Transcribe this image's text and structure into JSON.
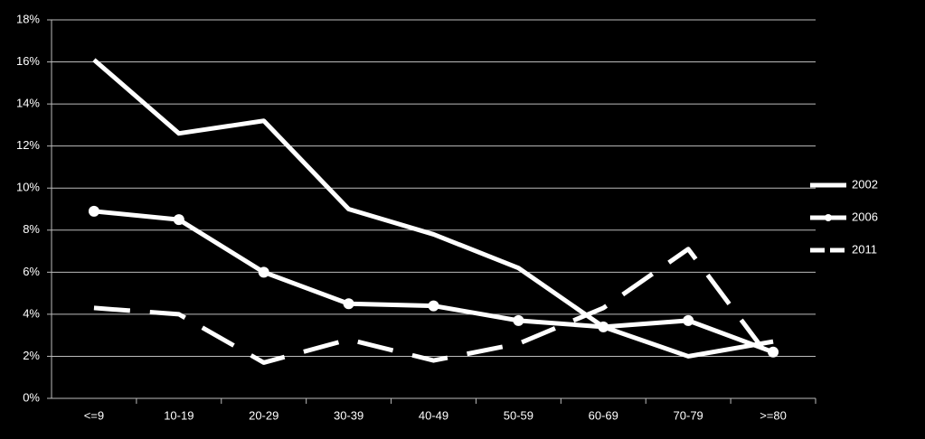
{
  "chart_data": {
    "type": "line",
    "categories": [
      "<=9",
      "10-19",
      "20-29",
      "30-39",
      "40-49",
      "50-59",
      "60-69",
      "70-79",
      ">=80"
    ],
    "series": [
      {
        "name": "2002",
        "color": "#ffffff",
        "dash": false,
        "marker": false,
        "values": [
          16.1,
          12.6,
          13.2,
          9.0,
          7.8,
          6.2,
          3.4,
          2.0,
          2.7
        ]
      },
      {
        "name": "2006",
        "color": "#ffffff",
        "dash": false,
        "marker": true,
        "values": [
          8.9,
          8.5,
          6.0,
          4.5,
          4.4,
          3.7,
          3.4,
          3.7,
          2.2
        ]
      },
      {
        "name": "2011",
        "color": "#ffffff",
        "dash": true,
        "marker": false,
        "values": [
          4.3,
          4.0,
          1.7,
          2.8,
          1.8,
          2.6,
          4.3,
          7.1,
          1.7
        ]
      }
    ],
    "ylim": [
      0,
      18
    ],
    "yticks": [
      {
        "value": 0,
        "label": "0%"
      },
      {
        "value": 2,
        "label": "2%"
      },
      {
        "value": 4,
        "label": "4%"
      },
      {
        "value": 6,
        "label": "6%"
      },
      {
        "value": 8,
        "label": "8%"
      },
      {
        "value": 10,
        "label": "10%"
      },
      {
        "value": 12,
        "label": "12%"
      },
      {
        "value": 14,
        "label": "14%"
      },
      {
        "value": 16,
        "label": "16%"
      },
      {
        "value": 18,
        "label": "18%"
      }
    ],
    "grid": true,
    "legend": "right"
  }
}
